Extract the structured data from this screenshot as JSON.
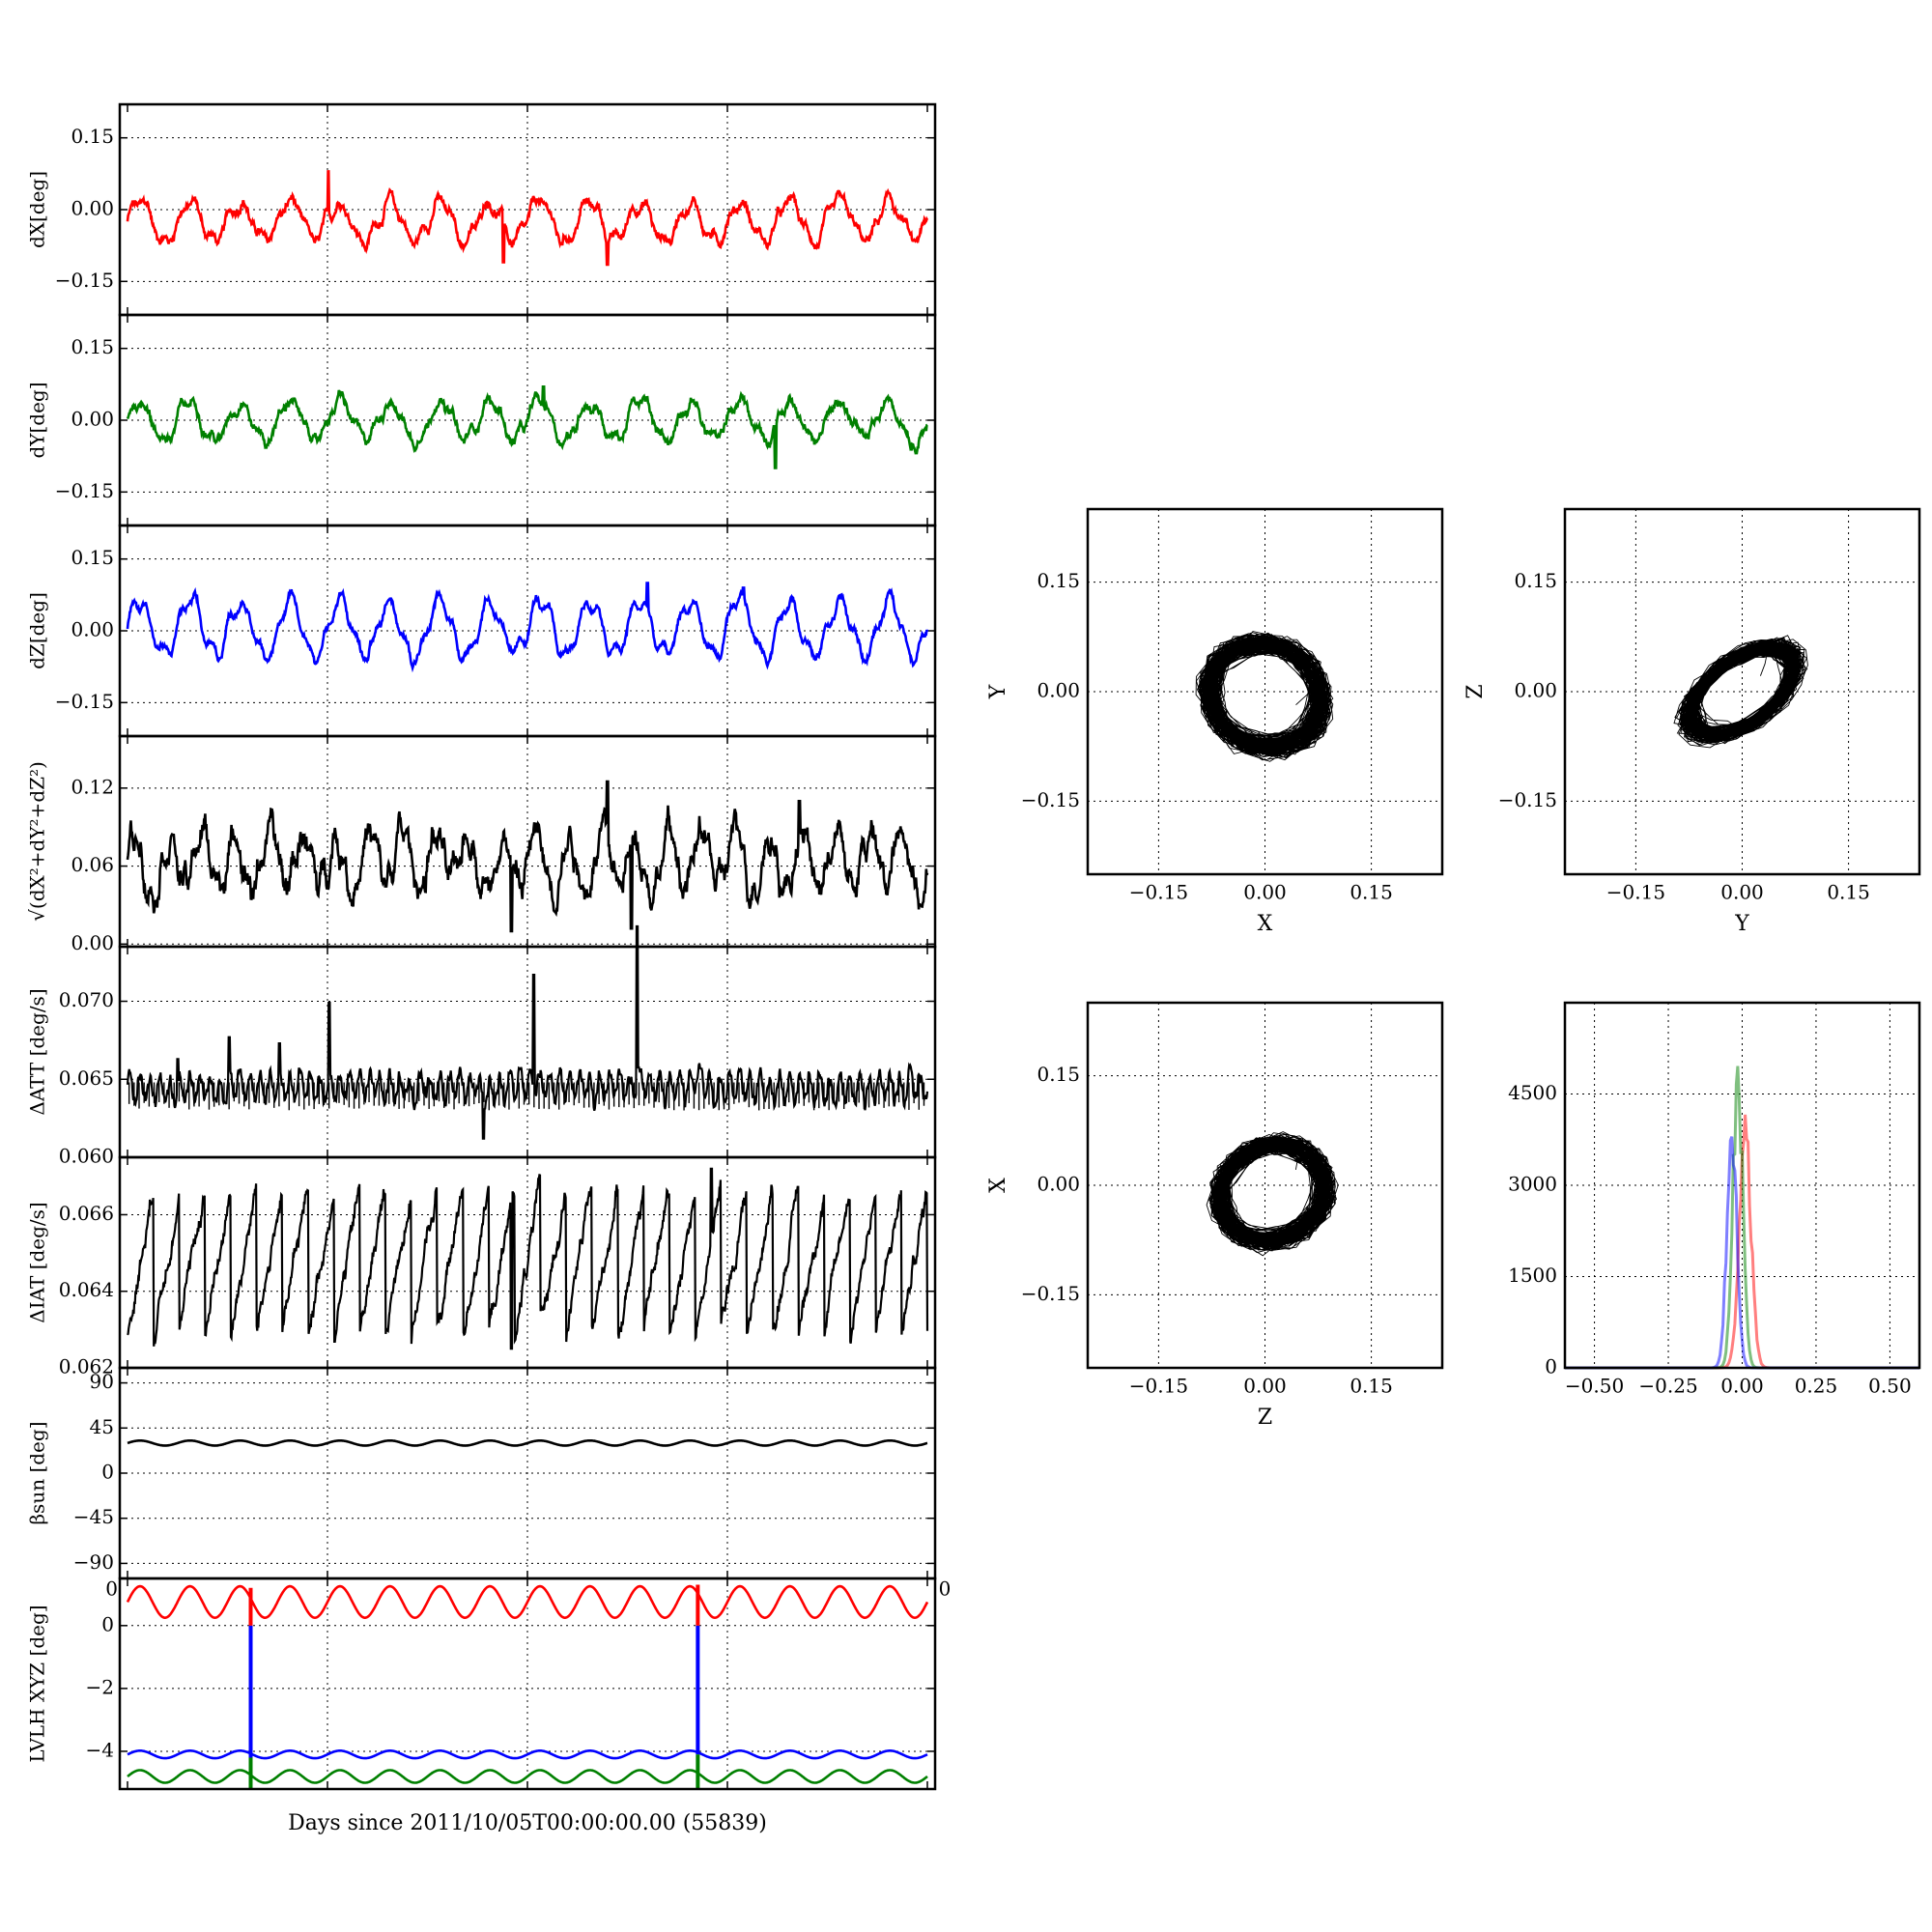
{
  "chart_data": [
    {
      "type": "line",
      "panel": "dX",
      "ylabel": "dX[deg]",
      "ylim": [
        -0.22,
        0.22
      ],
      "yticks": [
        0.15,
        0.0,
        -0.15
      ],
      "ytick_labels": [
        "0.15",
        "0.00",
        "−0.15"
      ],
      "series": [
        {
          "color": "#ff0000",
          "offset": -0.025,
          "amplitude": 0.04,
          "cycles": 16,
          "noise": 0.012,
          "spikes": [
            {
              "x": 0.251,
              "y": 0.08
            },
            {
              "x": 0.47,
              "y": -0.11
            },
            {
              "x": 0.6,
              "y": -0.115
            }
          ]
        }
      ]
    },
    {
      "type": "line",
      "panel": "dY",
      "ylabel": "dY[deg]",
      "ylim": [
        -0.22,
        0.22
      ],
      "yticks": [
        0.15,
        0.0,
        -0.15
      ],
      "ytick_labels": [
        "0.15",
        "0.00",
        "−0.15"
      ],
      "series": [
        {
          "color": "#008000",
          "offset": 0.0,
          "amplitude": 0.04,
          "cycles": 16,
          "noise": 0.012,
          "spikes": [
            {
              "x": 0.52,
              "y": 0.07
            },
            {
              "x": 0.81,
              "y": -0.1
            }
          ]
        }
      ]
    },
    {
      "type": "line",
      "panel": "dZ",
      "ylabel": "dZ[deg]",
      "ylim": [
        -0.22,
        0.22
      ],
      "yticks": [
        0.15,
        0.0,
        -0.15
      ],
      "ytick_labels": [
        "0.15",
        "0.00",
        "−0.15"
      ],
      "series": [
        {
          "color": "#0000ff",
          "offset": 0.005,
          "amplitude": 0.055,
          "cycles": 16,
          "noise": 0.01,
          "spikes": [
            {
              "x": 0.65,
              "y": 0.1
            },
            {
              "x": 0.77,
              "y": 0.09
            }
          ]
        }
      ]
    },
    {
      "type": "line",
      "panel": "dR",
      "ylabel": "√(dX²+dY²+dZ²)",
      "ylim": [
        -0.002,
        0.16
      ],
      "yticks": [
        0.12,
        0.06,
        0.0
      ],
      "ytick_labels": [
        "0.12",
        "0.06",
        "0.00"
      ],
      "series": [
        {
          "color": "#000000",
          "offset": 0.065,
          "amplitude": 0.02,
          "cycles": 24,
          "noise": 0.012,
          "spikes": [
            {
              "x": 0.48,
              "y": 0.01
            },
            {
              "x": 0.6,
              "y": 0.125
            },
            {
              "x": 0.63,
              "y": 0.012
            },
            {
              "x": 0.84,
              "y": 0.11
            }
          ]
        }
      ]
    },
    {
      "type": "line",
      "panel": "dATT",
      "ylabel": "ΔATT [deg/s]",
      "ylim": [
        0.06,
        0.0735
      ],
      "yticks": [
        0.07,
        0.065,
        0.06
      ],
      "ytick_labels": [
        "0.070",
        "0.065",
        "0.060"
      ],
      "series": [
        {
          "color": "#000000",
          "offset": 0.0645,
          "amplitude": 0.0008,
          "cycles": 80,
          "noise": 0.0004,
          "spikes": [
            {
              "x": 0.063,
              "y": 0.0663
            },
            {
              "x": 0.127,
              "y": 0.0677
            },
            {
              "x": 0.19,
              "y": 0.0673
            },
            {
              "x": 0.252,
              "y": 0.0699
            },
            {
              "x": 0.445,
              "y": 0.0612
            },
            {
              "x": 0.508,
              "y": 0.0717
            },
            {
              "x": 0.637,
              "y": 0.0748
            }
          ]
        }
      ]
    },
    {
      "type": "line",
      "panel": "dIAT",
      "ylabel": "ΔIAT [deg/s]",
      "ylim": [
        0.062,
        0.0675
      ],
      "yticks": [
        0.066,
        0.064,
        0.062
      ],
      "ytick_labels": [
        "0.066",
        "0.064",
        "0.062"
      ],
      "series": [
        {
          "color": "#000000",
          "offset": 0.0648,
          "amplitude": 0.0019,
          "cycles": 31,
          "noise": 0.0003,
          "shape": "sawtooth",
          "spikes": [
            {
              "x": 0.48,
              "y": 0.0625
            },
            {
              "x": 0.73,
              "y": 0.0672
            }
          ]
        }
      ]
    },
    {
      "type": "line",
      "panel": "beta_sun",
      "ylabel": "βsun [deg]",
      "ylim": [
        -105,
        105
      ],
      "yticks": [
        90,
        45,
        0,
        -45,
        -90
      ],
      "ytick_labels": [
        "90",
        "45",
        "0",
        "−45",
        "−90"
      ],
      "series": [
        {
          "color": "#000000",
          "offset": 30,
          "amplitude": 2.5,
          "cycles": 16,
          "noise": 0,
          "spikes": []
        }
      ]
    },
    {
      "type": "line",
      "panel": "LVLH",
      "ylabel": "LVLH XYZ [deg]",
      "ylim": [
        -5.2,
        1.5
      ],
      "yticks": [
        0,
        -2,
        -4
      ],
      "ytick_labels": [
        "0",
        "−2",
        "−4"
      ],
      "corner_labels": [
        "0",
        "0"
      ],
      "xlabel": "Days since 2011/10/05T00:00:00.00 (55839)",
      "series": [
        {
          "color": "#ff0000",
          "offset": 0.75,
          "amplitude": 0.5,
          "cycles": 16,
          "noise": 0,
          "spikes": []
        },
        {
          "color": "#0000ff",
          "offset": -4.1,
          "amplitude": 0.12,
          "cycles": 16,
          "noise": 0,
          "spikes": []
        },
        {
          "color": "#008000",
          "offset": -4.8,
          "amplitude": 0.2,
          "cycles": 16,
          "noise": 0,
          "spikes": []
        }
      ],
      "vlines": [
        {
          "x": 0.154,
          "color": "#0000ff",
          "y0": -4.2,
          "y1": 0.0
        },
        {
          "x": 0.154,
          "color": "#ff0000",
          "y0": 0.0,
          "y1": 1.2
        },
        {
          "x": 0.154,
          "color": "#008000",
          "y0": -5.2,
          "y1": -4.2
        },
        {
          "x": 0.713,
          "color": "#0000ff",
          "y0": -4.1,
          "y1": 0.0
        },
        {
          "x": 0.713,
          "color": "#ff0000",
          "y0": 0.0,
          "y1": 1.3
        },
        {
          "x": 0.713,
          "color": "#008000",
          "y0": -5.2,
          "y1": -4.1
        }
      ]
    },
    {
      "type": "scatter",
      "panel": "XY",
      "xlabel": "X",
      "ylabel": "Y",
      "xlim": [
        -0.25,
        0.25
      ],
      "ylim": [
        -0.25,
        0.25
      ],
      "ticks": [
        -0.15,
        0.0,
        0.15
      ],
      "tick_labels": [
        "−0.15",
        "0.00",
        "0.15"
      ],
      "cloud": {
        "cx": 0.0,
        "cy": -0.005,
        "rx": 0.08,
        "ry": 0.07,
        "tilt": -0.4
      }
    },
    {
      "type": "scatter",
      "panel": "YZ",
      "xlabel": "Y",
      "ylabel": "Z",
      "xlim": [
        -0.25,
        0.25
      ],
      "ylim": [
        -0.25,
        0.25
      ],
      "ticks": [
        -0.15,
        0.0,
        0.15
      ],
      "tick_labels": [
        "−0.15",
        "0.00",
        "0.15"
      ],
      "cloud": {
        "cx": 0.0,
        "cy": 0.0,
        "rx": 0.085,
        "ry": 0.045,
        "tilt": 0.6
      }
    },
    {
      "type": "scatter",
      "panel": "ZX",
      "xlabel": "Z",
      "ylabel": "X",
      "xlim": [
        -0.25,
        0.25
      ],
      "ylim": [
        -0.25,
        0.25
      ],
      "ticks": [
        -0.15,
        0.0,
        0.15
      ],
      "tick_labels": [
        "−0.15",
        "0.00",
        "0.15"
      ],
      "cloud": {
        "cx": 0.01,
        "cy": -0.01,
        "rx": 0.075,
        "ry": 0.065,
        "tilt": 0.35
      }
    },
    {
      "type": "line",
      "panel": "histogram",
      "xlim": [
        -0.6,
        0.6
      ],
      "ylim": [
        0,
        6000
      ],
      "xticks": [
        -0.5,
        -0.25,
        0.0,
        0.25,
        0.5
      ],
      "xtick_labels": [
        "−0.50",
        "−0.25",
        "0.00",
        "0.25",
        "0.50"
      ],
      "yticks": [
        4500,
        3000,
        1500,
        0
      ],
      "ytick_labels": [
        "4500",
        "3000",
        "1500",
        "0"
      ],
      "series": [
        {
          "color": "#ff0000",
          "center": 0.01,
          "width": 0.035,
          "peak": 4500
        },
        {
          "color": "#008000",
          "center": -0.015,
          "width": 0.03,
          "peak": 5300
        },
        {
          "color": "#0000ff",
          "center": -0.035,
          "width": 0.03,
          "peak": 4300
        }
      ]
    }
  ]
}
